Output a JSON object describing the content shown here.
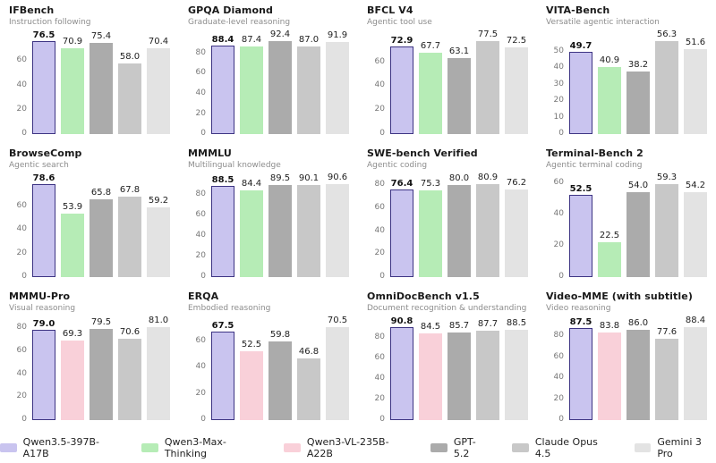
{
  "page": {
    "background": "#ffffff"
  },
  "models": [
    {
      "name": "Qwen3.5-397B-A17B",
      "fill": "#c9c4ef",
      "border": "#3d3483"
    },
    {
      "name": "Qwen3-Max-Thinking",
      "fill": "#b6ecb6",
      "border": null
    },
    {
      "name": "Qwen3-VL-235B-A22B",
      "fill": "#f9d0d9",
      "border": null
    },
    {
      "name": "GPT-5.2",
      "fill": "#ababab",
      "border": null
    },
    {
      "name": "Claude Opus 4.5",
      "fill": "#c8c8c8",
      "border": null
    },
    {
      "name": "Gemini 3 Pro",
      "fill": "#e3e3e3",
      "border": null
    }
  ],
  "chart_data": [
    {
      "type": "bar",
      "title": "IFBench",
      "subtitle": "Instruction following",
      "ylim": [
        0,
        78
      ],
      "yticks": [
        0,
        20,
        40,
        60
      ],
      "grid": false,
      "legend_position": "bottom-shared",
      "series": [
        {
          "model": 0,
          "name": "Qwen3.5-397B-A17B",
          "value": 76.5
        },
        {
          "model": 1,
          "name": "Qwen3-Max-Thinking",
          "value": 70.9
        },
        {
          "model": 3,
          "name": "GPT-5.2",
          "value": 75.4
        },
        {
          "model": 4,
          "name": "Claude Opus 4.5",
          "value": 58.0
        },
        {
          "model": 5,
          "name": "Gemini 3 Pro",
          "value": 70.4
        }
      ]
    },
    {
      "type": "bar",
      "title": "GPQA Diamond",
      "subtitle": "Graduate-level reasoning",
      "ylim": [
        0,
        94.2
      ],
      "yticks": [
        0,
        20,
        40,
        60,
        80
      ],
      "grid": false,
      "legend_position": "bottom-shared",
      "series": [
        {
          "model": 0,
          "name": "Qwen3.5-397B-A17B",
          "value": 88.4
        },
        {
          "model": 1,
          "name": "Qwen3-Max-Thinking",
          "value": 87.4
        },
        {
          "model": 3,
          "name": "GPT-5.2",
          "value": 92.4
        },
        {
          "model": 4,
          "name": "Claude Opus 4.5",
          "value": 87.0
        },
        {
          "model": 5,
          "name": "Gemini 3 Pro",
          "value": 91.9
        }
      ]
    },
    {
      "type": "bar",
      "title": "BFCL V4",
      "subtitle": "Agentic tool use",
      "ylim": [
        0,
        79
      ],
      "yticks": [
        0,
        20,
        40,
        60
      ],
      "grid": false,
      "legend_position": "bottom-shared",
      "series": [
        {
          "model": 0,
          "name": "Qwen3.5-397B-A17B",
          "value": 72.9
        },
        {
          "model": 1,
          "name": "Qwen3-Max-Thinking",
          "value": 67.7
        },
        {
          "model": 3,
          "name": "GPT-5.2",
          "value": 63.1
        },
        {
          "model": 4,
          "name": "Claude Opus 4.5",
          "value": 77.5
        },
        {
          "model": 5,
          "name": "Gemini 3 Pro",
          "value": 72.5
        }
      ]
    },
    {
      "type": "bar",
      "title": "VITA-Bench",
      "subtitle": "Versatile agentic interaction",
      "ylim": [
        0,
        57.5
      ],
      "yticks": [
        0,
        10,
        20,
        30,
        40,
        50
      ],
      "grid": false,
      "legend_position": "bottom-shared",
      "series": [
        {
          "model": 0,
          "name": "Qwen3.5-397B-A17B",
          "value": 49.7
        },
        {
          "model": 1,
          "name": "Qwen3-Max-Thinking",
          "value": 40.9
        },
        {
          "model": 3,
          "name": "GPT-5.2",
          "value": 38.2
        },
        {
          "model": 4,
          "name": "Claude Opus 4.5",
          "value": 56.3
        },
        {
          "model": 5,
          "name": "Gemini 3 Pro",
          "value": 51.6
        }
      ]
    },
    {
      "type": "bar",
      "title": "BrowseComp",
      "subtitle": "Agentic search",
      "ylim": [
        0,
        80.2
      ],
      "yticks": [
        0,
        20,
        40,
        60
      ],
      "grid": false,
      "legend_position": "bottom-shared",
      "series": [
        {
          "model": 0,
          "name": "Qwen3.5-397B-A17B",
          "value": 78.6
        },
        {
          "model": 1,
          "name": "Qwen3-Max-Thinking",
          "value": 53.9
        },
        {
          "model": 3,
          "name": "GPT-5.2",
          "value": 65.8
        },
        {
          "model": 4,
          "name": "Claude Opus 4.5",
          "value": 67.8
        },
        {
          "model": 5,
          "name": "Gemini 3 Pro",
          "value": 59.2
        }
      ]
    },
    {
      "type": "bar",
      "title": "MMMLU",
      "subtitle": "Multilingual knowledge",
      "ylim": [
        0,
        92.4
      ],
      "yticks": [
        0,
        20,
        40,
        60,
        80
      ],
      "grid": false,
      "legend_position": "bottom-shared",
      "series": [
        {
          "model": 0,
          "name": "Qwen3.5-397B-A17B",
          "value": 88.5
        },
        {
          "model": 1,
          "name": "Qwen3-Max-Thinking",
          "value": 84.4
        },
        {
          "model": 3,
          "name": "GPT-5.2",
          "value": 89.5
        },
        {
          "model": 4,
          "name": "Claude Opus 4.5",
          "value": 90.1
        },
        {
          "model": 5,
          "name": "Gemini 3 Pro",
          "value": 90.6
        }
      ]
    },
    {
      "type": "bar",
      "title": "SWE-bench Verified",
      "subtitle": "Agentic coding",
      "ylim": [
        0,
        82.5
      ],
      "yticks": [
        0,
        20,
        40,
        60,
        80
      ],
      "grid": false,
      "legend_position": "bottom-shared",
      "series": [
        {
          "model": 0,
          "name": "Qwen3.5-397B-A17B",
          "value": 76.4
        },
        {
          "model": 1,
          "name": "Qwen3-Max-Thinking",
          "value": 75.3
        },
        {
          "model": 3,
          "name": "GPT-5.2",
          "value": 80.0
        },
        {
          "model": 4,
          "name": "Claude Opus 4.5",
          "value": 80.9
        },
        {
          "model": 5,
          "name": "Gemini 3 Pro",
          "value": 76.2
        }
      ]
    },
    {
      "type": "bar",
      "title": "Terminal-Bench 2",
      "subtitle": "Agentic terminal coding",
      "ylim": [
        0,
        60.5
      ],
      "yticks": [
        0,
        20,
        40,
        60
      ],
      "grid": false,
      "legend_position": "bottom-shared",
      "series": [
        {
          "model": 0,
          "name": "Qwen3.5-397B-A17B",
          "value": 52.5
        },
        {
          "model": 1,
          "name": "Qwen3-Max-Thinking",
          "value": 22.5
        },
        {
          "model": 3,
          "name": "GPT-5.2",
          "value": 54.0
        },
        {
          "model": 4,
          "name": "Claude Opus 4.5",
          "value": 59.3
        },
        {
          "model": 5,
          "name": "Gemini 3 Pro",
          "value": 54.2
        }
      ]
    },
    {
      "type": "bar",
      "title": "MMMU-Pro",
      "subtitle": "Visual reasoning",
      "ylim": [
        0,
        82.6
      ],
      "yticks": [
        0,
        20,
        40,
        60,
        80
      ],
      "grid": false,
      "legend_position": "bottom-shared",
      "series": [
        {
          "model": 0,
          "name": "Qwen3.5-397B-A17B",
          "value": 79.0
        },
        {
          "model": 2,
          "name": "Qwen3-VL-235B-A22B",
          "value": 69.3
        },
        {
          "model": 3,
          "name": "GPT-5.2",
          "value": 79.5
        },
        {
          "model": 4,
          "name": "Claude Opus 4.5",
          "value": 70.6
        },
        {
          "model": 5,
          "name": "Gemini 3 Pro",
          "value": 81.0
        }
      ]
    },
    {
      "type": "bar",
      "title": "ERQA",
      "subtitle": "Embodied reasoning",
      "ylim": [
        0,
        72
      ],
      "yticks": [
        0,
        20,
        40,
        60
      ],
      "grid": false,
      "legend_position": "bottom-shared",
      "series": [
        {
          "model": 0,
          "name": "Qwen3.5-397B-A17B",
          "value": 67.5
        },
        {
          "model": 2,
          "name": "Qwen3-VL-235B-A22B",
          "value": 52.5
        },
        {
          "model": 3,
          "name": "GPT-5.2",
          "value": 59.8
        },
        {
          "model": 4,
          "name": "Claude Opus 4.5",
          "value": 46.8
        },
        {
          "model": 5,
          "name": "Gemini 3 Pro",
          "value": 70.5
        }
      ]
    },
    {
      "type": "bar",
      "title": "OmniDocBench v1.5",
      "subtitle": "Document recognition & understanding",
      "ylim": [
        0,
        92.6
      ],
      "yticks": [
        0,
        20,
        40,
        60,
        80
      ],
      "grid": false,
      "legend_position": "bottom-shared",
      "series": [
        {
          "model": 0,
          "name": "Qwen3.5-397B-A17B",
          "value": 90.8
        },
        {
          "model": 2,
          "name": "Qwen3-VL-235B-A22B",
          "value": 84.5
        },
        {
          "model": 3,
          "name": "GPT-5.2",
          "value": 85.7
        },
        {
          "model": 4,
          "name": "Claude Opus 4.5",
          "value": 87.7
        },
        {
          "model": 5,
          "name": "Gemini 3 Pro",
          "value": 88.5
        }
      ]
    },
    {
      "type": "bar",
      "title": "Video-MME (with subtitle)",
      "subtitle": "Video reasoning",
      "ylim": [
        0,
        90.2
      ],
      "yticks": [
        0,
        20,
        40,
        60,
        80
      ],
      "grid": false,
      "legend_position": "bottom-shared",
      "series": [
        {
          "model": 0,
          "name": "Qwen3.5-397B-A17B",
          "value": 87.5
        },
        {
          "model": 2,
          "name": "Qwen3-VL-235B-A22B",
          "value": 83.8
        },
        {
          "model": 3,
          "name": "GPT-5.2",
          "value": 86.0
        },
        {
          "model": 4,
          "name": "Claude Opus 4.5",
          "value": 77.6
        },
        {
          "model": 5,
          "name": "Gemini 3 Pro",
          "value": 88.4
        }
      ]
    }
  ]
}
